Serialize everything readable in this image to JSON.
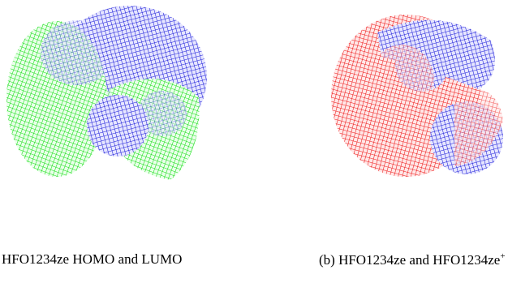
{
  "figure": {
    "subfigures": [
      {
        "caption": "HFO1234ze HOMO and LUMO"
      },
      {
        "caption": "(b) HFO1234ze and HFO1234ze",
        "caption_superscript": "+"
      }
    ]
  }
}
